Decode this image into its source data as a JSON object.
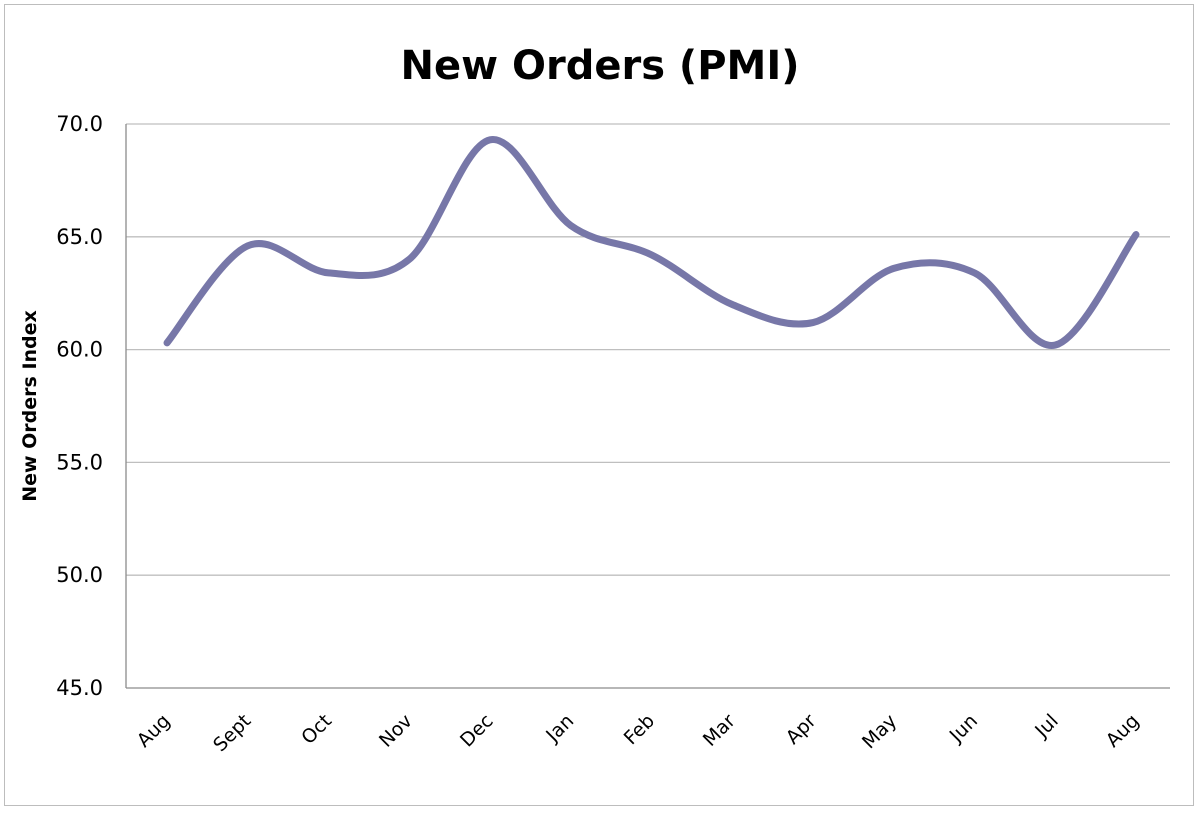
{
  "chart_data": {
    "type": "line",
    "title": "New Orders (PMI)",
    "xlabel": "",
    "ylabel": "New Orders Index",
    "categories": [
      "Aug",
      "Sept",
      "Oct",
      "Nov",
      "Dec",
      "Jan",
      "Feb",
      "Mar",
      "Apr",
      "May",
      "Jun",
      "Jul",
      "Aug"
    ],
    "series": [
      {
        "values": [
          60.3,
          64.6,
          63.4,
          64.0,
          69.3,
          65.5,
          64.2,
          62.0,
          61.2,
          63.6,
          63.4,
          60.2,
          65.1
        ],
        "color": "#7777a8"
      }
    ],
    "ylim": [
      45.0,
      70.0
    ],
    "yticks": [
      "45.0",
      "50.0",
      "55.0",
      "60.0",
      "65.0",
      "70.0"
    ],
    "ytick_values": [
      45,
      50,
      55,
      60,
      65,
      70
    ],
    "grid": true,
    "legend": "none",
    "smooth": true
  }
}
